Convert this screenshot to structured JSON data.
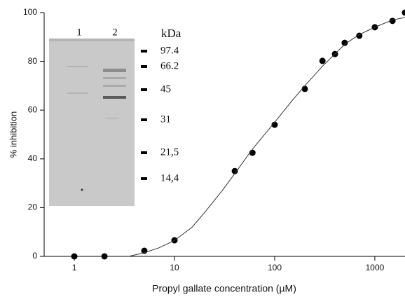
{
  "chart_data": {
    "type": "scatter",
    "x_scale": "log",
    "x_label": "Propyl gallate concentration (µM)",
    "y_label": "% inhibition",
    "xlim": [
      0.5,
      2000
    ],
    "ylim": [
      0,
      100
    ],
    "xticks": [
      1,
      10,
      100,
      1000
    ],
    "yticks": [
      0,
      20,
      40,
      60,
      80,
      100
    ],
    "grid": false,
    "series": [
      {
        "type": "scatter",
        "color": "#000000",
        "x": [
          1,
          2,
          5,
          10,
          40,
          60,
          100,
          200,
          300,
          400,
          500,
          700,
          1000,
          1500,
          2000
        ],
        "values": [
          0,
          0,
          2.3,
          6.6,
          35,
          42.5,
          54,
          68.7,
          80.2,
          83,
          87.6,
          90.5,
          94,
          96.6,
          100
        ]
      },
      {
        "type": "line",
        "color": "#333333",
        "x": [
          3.5,
          5,
          7,
          10,
          15,
          20,
          30,
          40,
          60,
          100,
          150,
          200,
          300,
          500,
          700,
          1000,
          1500,
          2000
        ],
        "values": [
          0,
          1.5,
          3.5,
          6.5,
          12,
          18,
          27,
          34,
          44,
          55,
          64,
          70,
          78,
          87,
          91,
          94,
          97,
          98
        ]
      }
    ],
    "inset": {
      "lanes": [
        "1",
        "2"
      ],
      "unit": "kDa",
      "markers": [
        97.4,
        66.2,
        45,
        31,
        {
          "value": 21.5,
          "label": "21,5"
        },
        {
          "value": 14.4,
          "label": "14,4"
        }
      ]
    }
  }
}
